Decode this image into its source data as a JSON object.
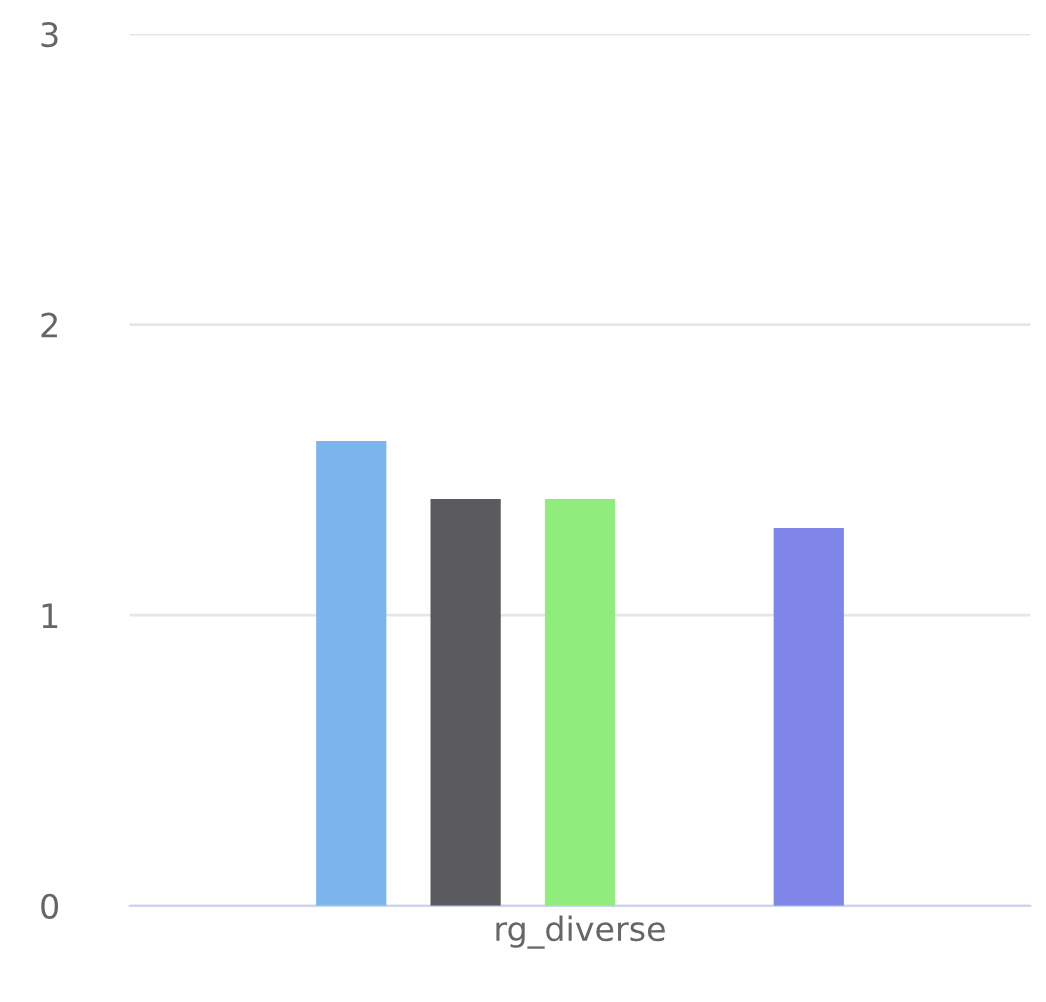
{
  "chart_data": {
    "type": "bar",
    "categories": [
      "rg_diverse"
    ],
    "series": [
      {
        "color": "#7cb5ec",
        "values": [
          1.6
        ]
      },
      {
        "color": "#5b5b5f",
        "values": [
          1.4
        ]
      },
      {
        "color": "#90ed7d",
        "values": [
          1.4
        ]
      },
      {
        "values": [
          null
        ]
      },
      {
        "color": "#8085e9",
        "values": [
          1.3
        ]
      }
    ],
    "ylim": [
      0,
      3
    ],
    "yticks": [
      0,
      1,
      2,
      3
    ],
    "grid": "y",
    "legend": false
  }
}
